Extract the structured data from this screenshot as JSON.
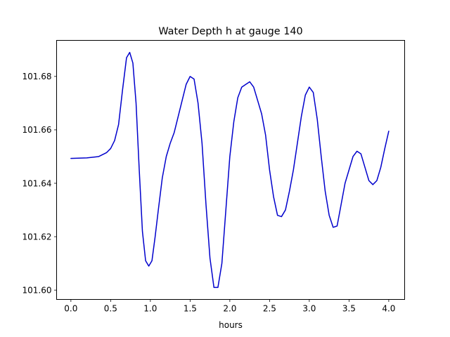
{
  "chart_data": {
    "type": "line",
    "title": "Water Depth h at gauge 140",
    "xlabel": "hours",
    "ylabel": "",
    "xlim": [
      -0.18,
      4.2
    ],
    "ylim": [
      101.5965,
      101.6935
    ],
    "grid": false,
    "legend": "none",
    "x_ticks": [
      0.0,
      0.5,
      1.0,
      1.5,
      2.0,
      2.5,
      3.0,
      3.5,
      4.0
    ],
    "x_tick_labels": [
      "0.0",
      "0.5",
      "1.0",
      "1.5",
      "2.0",
      "2.5",
      "3.0",
      "3.5",
      "4.0"
    ],
    "y_ticks": [
      101.6,
      101.62,
      101.64,
      101.66,
      101.68
    ],
    "y_tick_labels": [
      "101.60",
      "101.62",
      "101.64",
      "101.66",
      "101.68"
    ],
    "series": [
      {
        "color": "#0000cc",
        "x": [
          0.0,
          0.2,
          0.35,
          0.45,
          0.5,
          0.55,
          0.6,
          0.65,
          0.7,
          0.74,
          0.78,
          0.82,
          0.86,
          0.9,
          0.94,
          0.98,
          1.02,
          1.06,
          1.1,
          1.15,
          1.2,
          1.25,
          1.3,
          1.35,
          1.4,
          1.45,
          1.5,
          1.55,
          1.6,
          1.65,
          1.7,
          1.75,
          1.8,
          1.85,
          1.9,
          1.95,
          2.0,
          2.05,
          2.1,
          2.15,
          2.2,
          2.25,
          2.3,
          2.35,
          2.4,
          2.45,
          2.5,
          2.55,
          2.6,
          2.65,
          2.7,
          2.75,
          2.8,
          2.85,
          2.9,
          2.95,
          3.0,
          3.05,
          3.1,
          3.15,
          3.2,
          3.25,
          3.3,
          3.35,
          3.4,
          3.45,
          3.5,
          3.55,
          3.6,
          3.65,
          3.7,
          3.75,
          3.8,
          3.85,
          3.9,
          3.95,
          4.0
        ],
        "y": [
          101.6493,
          101.6495,
          101.65,
          101.6515,
          101.653,
          101.656,
          101.662,
          101.675,
          101.687,
          101.689,
          101.685,
          101.67,
          101.645,
          101.622,
          101.611,
          101.609,
          101.611,
          101.62,
          101.63,
          101.642,
          101.65,
          101.655,
          101.659,
          101.665,
          101.671,
          101.677,
          101.68,
          101.679,
          101.67,
          101.655,
          101.632,
          101.612,
          101.601,
          101.601,
          101.61,
          101.63,
          101.65,
          101.663,
          101.672,
          101.676,
          101.677,
          101.678,
          101.676,
          101.671,
          101.666,
          101.658,
          101.645,
          101.635,
          101.628,
          101.6275,
          101.63,
          101.637,
          101.645,
          101.655,
          101.665,
          101.673,
          101.676,
          101.674,
          101.664,
          101.65,
          101.637,
          101.628,
          101.6235,
          101.624,
          101.632,
          101.64,
          101.645,
          101.65,
          101.652,
          101.651,
          101.646,
          101.641,
          101.6395,
          101.641,
          101.646,
          101.653,
          101.6595
        ]
      }
    ]
  }
}
